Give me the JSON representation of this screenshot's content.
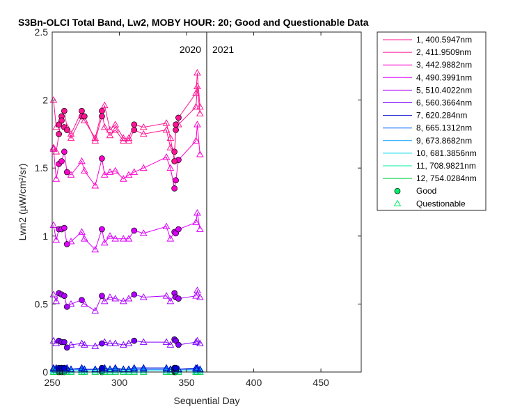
{
  "chart_data": {
    "type": "line",
    "title": "S3Bn-OLCI Total Band, Lw2, MOBY HOUR: 20;  Good and Questionable Data",
    "xlabel": "Sequential Day",
    "ylabel": "Lwn2 (µW/cm²/sr)",
    "xlim": [
      250,
      480
    ],
    "ylim": [
      0,
      2.5
    ],
    "xticks": [
      250,
      300,
      350,
      400,
      450
    ],
    "xtick_labels": [
      "250",
      "300",
      "350",
      "400",
      "450"
    ],
    "yticks": [
      0,
      0.5,
      1,
      1.5,
      2,
      2.5
    ],
    "ytick_labels": [
      "0",
      "0.5",
      "1",
      "1.5",
      "2",
      "2.5"
    ],
    "year_divider": {
      "x": 365,
      "left_label": "2020",
      "right_label": "2021"
    },
    "legend_position": "outside-right",
    "grid": false,
    "x": [
      251,
      253,
      255,
      257,
      259,
      261,
      264,
      272,
      274,
      282,
      287,
      289,
      293,
      297,
      303,
      307,
      311,
      318,
      335,
      338,
      341,
      342,
      344,
      357,
      358,
      360
    ],
    "series": [
      {
        "name": "1, 400.5947nm",
        "color": "#ff1493",
        "values": [
          2.0,
          1.8,
          1.82,
          1.85,
          1.8,
          1.78,
          1.75,
          1.92,
          1.88,
          1.7,
          1.88,
          1.96,
          1.78,
          1.82,
          1.72,
          1.72,
          1.82,
          1.8,
          1.83,
          1.72,
          1.55,
          1.82,
          1.87,
          2.05,
          2.2,
          1.95
        ],
        "good": [
          0,
          0,
          1,
          1,
          1,
          1,
          0,
          1,
          1,
          0,
          1,
          0,
          0,
          0,
          0,
          0,
          1,
          0,
          0,
          0,
          1,
          1,
          1,
          0,
          0,
          0
        ]
      },
      {
        "name": "2, 411.9509nm",
        "color": "#ff1493",
        "values": [
          1.65,
          1.62,
          1.75,
          1.88,
          1.92,
          1.8,
          1.72,
          1.88,
          1.85,
          1.72,
          1.92,
          1.8,
          1.74,
          1.78,
          1.7,
          1.7,
          1.78,
          1.75,
          1.78,
          1.65,
          1.62,
          1.78,
          1.82,
          1.95,
          2.1,
          1.9
        ],
        "good": [
          0,
          0,
          1,
          1,
          1,
          0,
          0,
          1,
          0,
          0,
          1,
          0,
          0,
          0,
          0,
          0,
          1,
          0,
          0,
          0,
          1,
          1,
          0,
          0,
          0,
          0
        ]
      },
      {
        "name": "3, 442.9882nm",
        "color": "#ff00cc",
        "values": [
          1.64,
          1.42,
          1.53,
          1.55,
          1.62,
          1.47,
          1.45,
          1.55,
          1.48,
          1.37,
          1.57,
          1.45,
          1.47,
          1.48,
          1.42,
          1.45,
          1.47,
          1.5,
          1.58,
          1.5,
          1.35,
          1.41,
          1.56,
          1.7,
          1.82,
          1.6
        ],
        "good": [
          0,
          0,
          1,
          1,
          1,
          1,
          0,
          0,
          0,
          0,
          1,
          0,
          0,
          0,
          0,
          0,
          0,
          0,
          0,
          0,
          1,
          1,
          1,
          0,
          0,
          0
        ]
      },
      {
        "name": "4, 490.3991nm",
        "color": "#dd00ff",
        "values": [
          1.08,
          0.97,
          1.05,
          1.05,
          1.06,
          0.94,
          0.96,
          1.03,
          0.98,
          0.9,
          1.05,
          0.95,
          1.0,
          0.98,
          0.98,
          0.98,
          1.04,
          1.02,
          1.07,
          0.98,
          1.03,
          1.02,
          1.05,
          1.1,
          1.17,
          1.05
        ],
        "good": [
          0,
          0,
          1,
          1,
          1,
          1,
          0,
          0,
          0,
          0,
          1,
          0,
          0,
          0,
          0,
          0,
          1,
          0,
          0,
          0,
          1,
          1,
          1,
          0,
          0,
          0
        ]
      },
      {
        "name": "5, 510.4022nm",
        "color": "#b000ff",
        "values": [
          0.57,
          0.52,
          0.58,
          0.57,
          0.56,
          0.48,
          0.5,
          0.53,
          0.5,
          0.45,
          0.56,
          0.52,
          0.55,
          0.54,
          0.52,
          0.54,
          0.57,
          0.55,
          0.56,
          0.52,
          0.58,
          0.55,
          0.54,
          0.56,
          0.6,
          0.55
        ],
        "good": [
          0,
          0,
          1,
          1,
          1,
          1,
          0,
          1,
          0,
          0,
          1,
          0,
          0,
          0,
          0,
          0,
          1,
          0,
          0,
          0,
          1,
          1,
          1,
          0,
          0,
          0
        ]
      },
      {
        "name": "6, 560.3664nm",
        "color": "#8000ff",
        "values": [
          0.23,
          0.21,
          0.23,
          0.22,
          0.22,
          0.18,
          0.2,
          0.21,
          0.2,
          0.19,
          0.21,
          0.22,
          0.21,
          0.21,
          0.2,
          0.21,
          0.23,
          0.22,
          0.22,
          0.2,
          0.24,
          0.23,
          0.2,
          0.22,
          0.23,
          0.21
        ],
        "good": [
          0,
          0,
          1,
          1,
          1,
          1,
          0,
          0,
          0,
          0,
          1,
          0,
          0,
          0,
          0,
          0,
          1,
          0,
          0,
          0,
          1,
          1,
          1,
          0,
          0,
          0
        ]
      },
      {
        "name": "7,  620.284nm",
        "color": "#0000cc",
        "values": [
          0.03,
          0.03,
          0.03,
          0.03,
          0.03,
          0.03,
          0.02,
          0.03,
          0.02,
          0.02,
          0.03,
          0.03,
          0.02,
          0.03,
          0.02,
          0.02,
          0.03,
          0.03,
          0.03,
          0.02,
          0.03,
          0.03,
          0.02,
          0.03,
          0.03,
          0.02
        ],
        "good": [
          0,
          0,
          1,
          1,
          1,
          0,
          0,
          0,
          0,
          0,
          1,
          0,
          0,
          0,
          0,
          0,
          0,
          0,
          0,
          0,
          1,
          1,
          0,
          0,
          0,
          0
        ]
      },
      {
        "name": "8, 665.1312nm",
        "color": "#0066ff",
        "values": [
          0.02,
          0.02,
          0.02,
          0.02,
          0.02,
          0.02,
          0.02,
          0.02,
          0.02,
          0.02,
          0.02,
          0.02,
          0.02,
          0.02,
          0.02,
          0.02,
          0.02,
          0.02,
          0.02,
          0.02,
          0.02,
          0.02,
          0.02,
          0.02,
          0.02,
          0.02
        ],
        "good": [
          0,
          0,
          1,
          1,
          1,
          0,
          0,
          0,
          0,
          0,
          1,
          0,
          0,
          0,
          0,
          0,
          0,
          0,
          0,
          0,
          1,
          1,
          0,
          0,
          0,
          0
        ]
      },
      {
        "name": "9, 673.8682nm",
        "color": "#00a0ff",
        "values": [
          0.02,
          0.02,
          0.02,
          0.02,
          0.02,
          0.02,
          0.02,
          0.02,
          0.02,
          0.02,
          0.02,
          0.02,
          0.02,
          0.02,
          0.02,
          0.02,
          0.02,
          0.02,
          0.02,
          0.02,
          0.02,
          0.02,
          0.02,
          0.02,
          0.02,
          0.02
        ],
        "good": [
          0,
          0,
          1,
          1,
          1,
          0,
          0,
          0,
          0,
          0,
          1,
          0,
          0,
          0,
          0,
          0,
          0,
          0,
          0,
          0,
          1,
          1,
          0,
          0,
          0,
          0
        ]
      },
      {
        "name": "10, 681.3856nm",
        "color": "#00d8e8",
        "values": [
          0.01,
          0.01,
          0.01,
          0.01,
          0.01,
          0.01,
          0.01,
          0.01,
          0.01,
          0.01,
          0.01,
          0.01,
          0.01,
          0.01,
          0.01,
          0.01,
          0.01,
          0.01,
          0.01,
          0.01,
          0.01,
          0.01,
          0.01,
          0.01,
          0.01,
          0.01
        ],
        "good": [
          0,
          0,
          1,
          1,
          1,
          0,
          0,
          0,
          0,
          0,
          1,
          0,
          0,
          0,
          0,
          0,
          0,
          0,
          0,
          0,
          1,
          1,
          0,
          0,
          0,
          0
        ]
      },
      {
        "name": "11, 708.9821nm",
        "color": "#00f0a0",
        "values": [
          0.01,
          0.01,
          0.01,
          0.01,
          0.01,
          0.01,
          0.01,
          0.01,
          0.01,
          0.01,
          0.01,
          0.01,
          0.01,
          0.01,
          0.01,
          0.01,
          0.01,
          0.01,
          0.01,
          0.01,
          0.01,
          0.01,
          0.01,
          0.01,
          0.01,
          0.01
        ],
        "good": [
          0,
          0,
          1,
          1,
          1,
          0,
          0,
          0,
          0,
          0,
          1,
          0,
          0,
          0,
          0,
          0,
          0,
          0,
          0,
          0,
          1,
          1,
          0,
          0,
          0,
          0
        ]
      },
      {
        "name": "12, 754.0284nm",
        "color": "#00cc44",
        "values": [
          0.0,
          0.0,
          0.0,
          0.0,
          0.0,
          0.0,
          0.0,
          0.0,
          0.0,
          0.0,
          0.0,
          0.0,
          0.0,
          0.0,
          0.0,
          0.0,
          0.0,
          0.0,
          0.0,
          0.0,
          0.0,
          0.0,
          0.0,
          0.0,
          0.0,
          0.0
        ],
        "good": [
          0,
          0,
          1,
          1,
          1,
          0,
          0,
          0,
          0,
          0,
          1,
          0,
          0,
          0,
          0,
          0,
          0,
          0,
          0,
          0,
          1,
          1,
          0,
          0,
          0,
          0
        ]
      }
    ],
    "marker_legend": [
      {
        "label": "Good",
        "marker": "circle",
        "color": "#00ee66"
      },
      {
        "label": "Questionable",
        "marker": "triangle",
        "color": "#00ee66"
      }
    ]
  }
}
